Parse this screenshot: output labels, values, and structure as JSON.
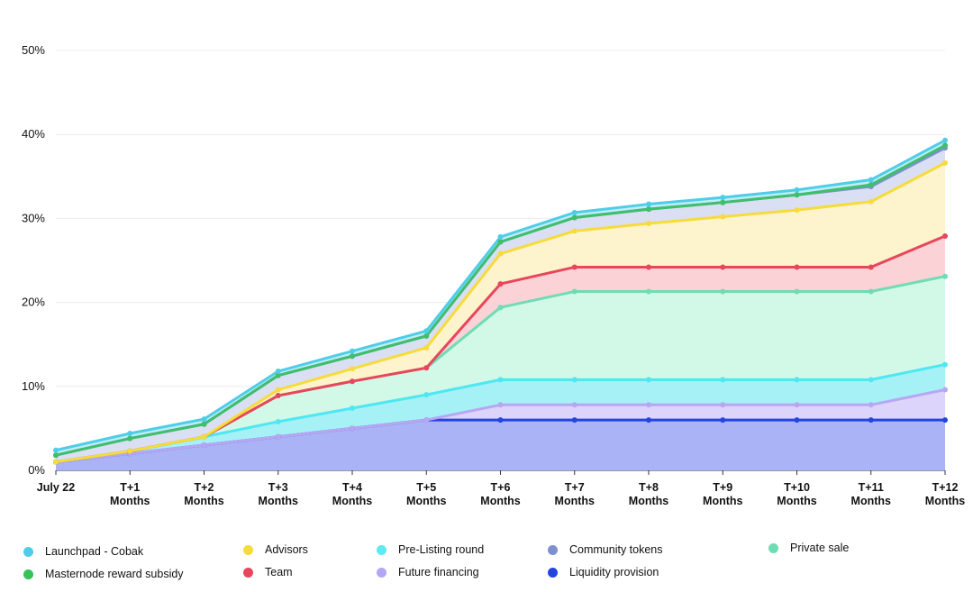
{
  "chart_data": {
    "type": "area",
    "stacked": true,
    "categories": [
      "July 22",
      "T+1 Months",
      "T+2 Months",
      "T+3 Months",
      "T+4 Months",
      "T+5 Months",
      "T+6 Months",
      "T+7 Months",
      "T+8 Months",
      "T+9 Months",
      "T+10 Months",
      "T+11 Months",
      "T+12 Months"
    ],
    "yticks": [
      "0%",
      "10%",
      "20%",
      "30%",
      "40%",
      "50%"
    ],
    "ylim": [
      0,
      50
    ],
    "grid": true,
    "legend_position": "bottom",
    "series": [
      {
        "name": "Liquidity provision",
        "color": "#2444e0",
        "fill": "#aab3f5",
        "values": [
          1,
          2,
          3,
          4,
          5,
          6,
          6,
          6,
          6,
          6,
          6,
          6,
          6
        ]
      },
      {
        "name": "Future financing",
        "color": "#b7a7f3",
        "fill": "#dcd4fb",
        "values": [
          0,
          0,
          0,
          0,
          0,
          0,
          1.8,
          1.8,
          1.8,
          1.8,
          1.8,
          1.8,
          3.6
        ]
      },
      {
        "name": "Pre-Listing round",
        "color": "#4ee7f2",
        "fill": "#a6f1f6",
        "values": [
          0,
          0.3,
          1,
          1.8,
          2.4,
          3,
          3,
          3,
          3,
          3,
          3,
          3,
          3
        ]
      },
      {
        "name": "Private sale",
        "color": "#6fdcb4",
        "fill": "#d2f9e8",
        "values": [
          0,
          0,
          0,
          3.1,
          3.2,
          3.2,
          8.6,
          10.5,
          10.5,
          10.5,
          10.5,
          10.5,
          10.5
        ]
      },
      {
        "name": "Team",
        "color": "#e8465b",
        "fill": "#fbd3d6",
        "values": [
          0,
          0,
          0,
          0,
          0,
          0,
          2.8,
          2.9,
          2.9,
          2.9,
          2.9,
          2.9,
          4.8
        ]
      },
      {
        "name": "Advisors",
        "color": "#f5dc3c",
        "fill": "#fdf3cc",
        "values": [
          0,
          0,
          0,
          0.7,
          1.5,
          2.4,
          3.6,
          4.3,
          5.2,
          6,
          6.8,
          7.8,
          8.7
        ]
      },
      {
        "name": "Community tokens",
        "color": "#7d8fd0",
        "fill": "#dbdff3",
        "values": [
          0.8,
          1.5,
          1.5,
          1.7,
          1.5,
          1.4,
          1.4,
          1.6,
          1.7,
          1.7,
          1.8,
          1.8,
          1.8
        ]
      },
      {
        "name": "Masternode reward subsidy",
        "color": "#3fbf6a",
        "fill": "#cdeed8",
        "values": [
          0,
          0,
          0,
          0,
          0,
          0,
          0,
          0,
          0,
          0,
          0,
          0.2,
          0.3
        ]
      },
      {
        "name": "Launchpad - Cobak",
        "color": "#4fcde8",
        "fill": "#bfeef7",
        "values": [
          0.6,
          0.6,
          0.6,
          0.5,
          0.6,
          0.6,
          0.6,
          0.6,
          0.6,
          0.6,
          0.6,
          0.6,
          0.6
        ]
      }
    ]
  },
  "legend": [
    {
      "label": "Launchpad - Cobak",
      "color": "#4fcde8"
    },
    {
      "label": "Masternode reward subsidy",
      "color": "#36c255"
    },
    {
      "label": "Advisors",
      "color": "#f5dc3c"
    },
    {
      "label": "Team",
      "color": "#e8465b"
    },
    {
      "label": "Pre-Listing round",
      "color": "#5fe9f4"
    },
    {
      "label": "Future financing",
      "color": "#b5a6f3"
    },
    {
      "label": "Community tokens",
      "color": "#7d8fd0"
    },
    {
      "label": "Liquidity provision",
      "color": "#2444e0"
    },
    {
      "label": "Private sale",
      "color": "#6fdcb4"
    }
  ]
}
